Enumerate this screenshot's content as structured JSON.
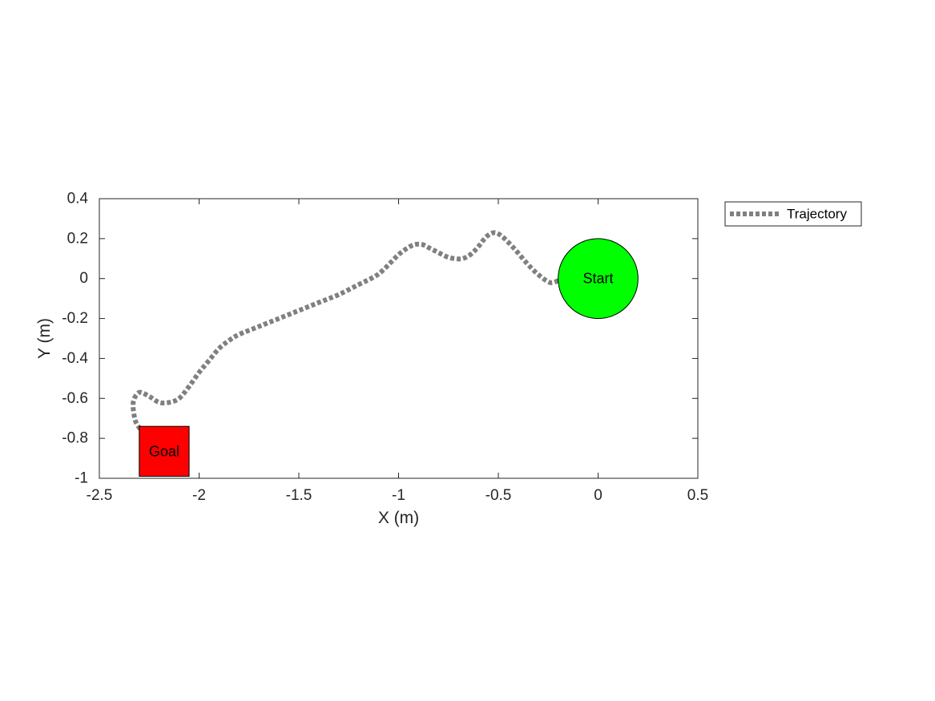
{
  "chart_data": {
    "type": "line",
    "title": "",
    "xlabel": "X (m)",
    "ylabel": "Y (m)",
    "xlim": [
      -2.5,
      0.5
    ],
    "ylim": [
      -1,
      0.4
    ],
    "xticks": [
      -2.5,
      -2,
      -1.5,
      -1,
      -0.5,
      0,
      0.5
    ],
    "yticks": [
      -1,
      -0.8,
      -0.6,
      -0.4,
      -0.2,
      0,
      0.2,
      0.4
    ],
    "xtick_labels": [
      "-2.5",
      "-2",
      "-1.5",
      "-1",
      "-0.5",
      "0",
      "0.5"
    ],
    "ytick_labels": [
      "-1",
      "-0.8",
      "-0.6",
      "-0.4",
      "-0.2",
      "0",
      "0.2",
      "0.4"
    ],
    "grid": false,
    "legend_position": "outside-right-top",
    "series": [
      {
        "name": "Trajectory",
        "color": "#808080",
        "style": "dotted",
        "x": [
          -0.2,
          -0.24,
          -0.3,
          -0.36,
          -0.42,
          -0.48,
          -0.52,
          -0.56,
          -0.6,
          -0.64,
          -0.68,
          -0.72,
          -0.76,
          -0.8,
          -0.84,
          -0.88,
          -0.92,
          -0.96,
          -1.0,
          -1.04,
          -1.08,
          -1.12,
          -1.2,
          -1.3,
          -1.4,
          -1.5,
          -1.6,
          -1.7,
          -1.8,
          -1.85,
          -1.9,
          -1.95,
          -2.0,
          -2.05,
          -2.1,
          -2.15,
          -2.2,
          -2.25,
          -2.3,
          -2.33,
          -2.32,
          -2.29
        ],
        "y": [
          -0.01,
          -0.02,
          0.02,
          0.08,
          0.15,
          0.21,
          0.23,
          0.21,
          0.16,
          0.12,
          0.1,
          0.1,
          0.11,
          0.13,
          0.15,
          0.17,
          0.17,
          0.15,
          0.12,
          0.08,
          0.04,
          0.01,
          -0.03,
          -0.08,
          -0.12,
          -0.16,
          -0.2,
          -0.24,
          -0.28,
          -0.31,
          -0.35,
          -0.41,
          -0.47,
          -0.54,
          -0.6,
          -0.62,
          -0.62,
          -0.59,
          -0.57,
          -0.62,
          -0.71,
          -0.76
        ]
      }
    ],
    "annotations": [
      {
        "shape": "circle",
        "label": "Start",
        "x": 0.0,
        "y": 0.0,
        "radius": 0.2,
        "fill": "#00ff00"
      },
      {
        "shape": "square",
        "label": "Goal",
        "x_range": [
          -2.3,
          -2.05
        ],
        "y_range": [
          -0.99,
          -0.74
        ],
        "fill": "#ff0000"
      }
    ]
  }
}
